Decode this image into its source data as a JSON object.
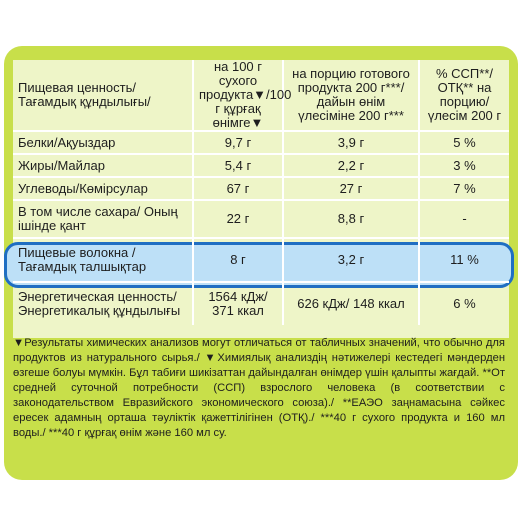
{
  "colors": {
    "panel": "#c8df4a",
    "table_bg": "#eef5c8",
    "highlight_fill": "#bde0f7",
    "highlight_border": "#1f6ec2"
  },
  "header": {
    "name": "Пищевая ценность/ Тағамдық құндылығы/",
    "col1": "на 100 г сухого продукта▼/100 г құрғақ өнімге▼",
    "col2": "на порцию готового продукта 200 г***/дайын өнім үлесіміне 200 г***",
    "col3": "% ССП**/ОТҚ** на порцию/ үлесім 200 г"
  },
  "rows": [
    {
      "name": "Белки/Ақуыздар",
      "per100": "9,7 г",
      "portion": "3,9 г",
      "pct": "5 %"
    },
    {
      "name": "Жиры/Майлар",
      "per100": "5,4 г",
      "portion": "2,2 г",
      "pct": "3 %"
    },
    {
      "name": "Углеводы/Көмірсулар",
      "per100": "67 г",
      "portion": "27 г",
      "pct": "7 %"
    },
    {
      "name": "В том числе сахара/ Оның ішінде қант",
      "per100": "22 г",
      "portion": "8,8 г",
      "pct": "-"
    },
    {
      "name": "Пищевые волокна / Тағамдық талшықтар",
      "per100": "8 г",
      "portion": "3,2 г",
      "pct": "11 %"
    },
    {
      "name": "Энергетическая ценность/ Энергетикалық құндылығы",
      "per100": "1564 кДж/ 371 ккал",
      "portion": "626 кДж/ 148 ккал",
      "pct": "6 %"
    }
  ],
  "footnote": "▼Результаты химических анализов могут отличаться от табличных значений, что обычно для продуктов из натурального сырья./ ▼Химиялық анализдің нәтижелері кестедегі мәндерден өзгеше болуы мүмкін. Бұл табиғи шикізаттан дайындалған өнімдер үшін қалыпты жағдай. **От средней суточной потребности (ССП) взрослого человека (в соответствии с законодательством Евразийского экономического союза)./ **ЕАЭО заңнамасына сәйкес ересек адамның орташа тәуліктік қажеттілігінен (ОТҚ)./ ***40 г сухого продукта и 160 мл воды./ ***40 г құрғақ өнім және 160 мл су."
}
